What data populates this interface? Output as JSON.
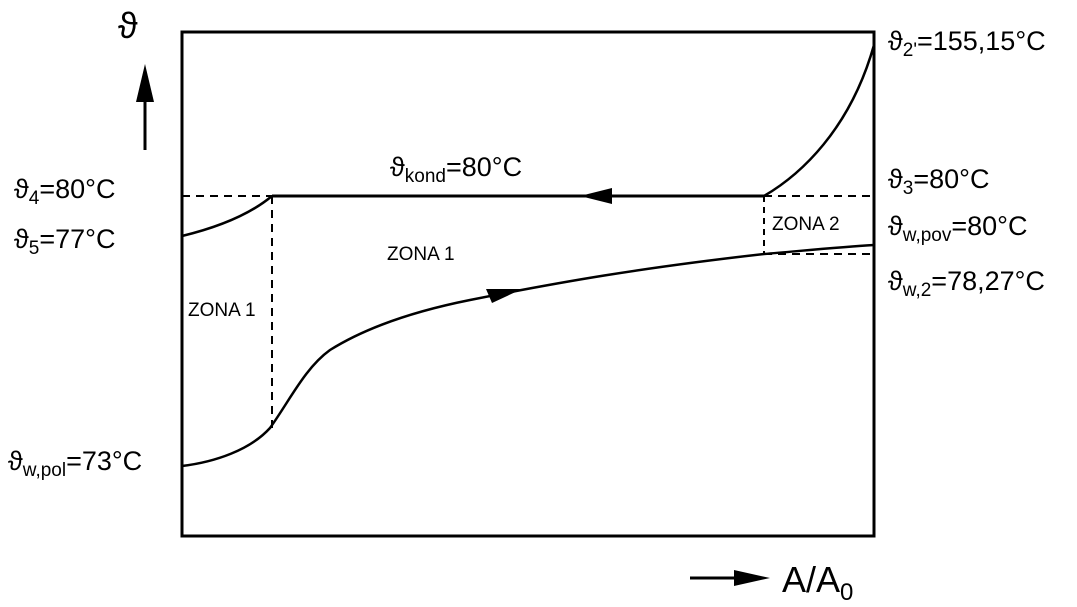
{
  "axes": {
    "y_symbol": "ϑ",
    "x_label": {
      "main": "A/A",
      "sub": "0"
    }
  },
  "labels": {
    "t2": {
      "sym": "ϑ",
      "sub": "2'",
      "val": "=155,15°C"
    },
    "t3": {
      "sym": "ϑ",
      "sub": "3",
      "val": "=80°C"
    },
    "t4": {
      "sym": "ϑ",
      "sub": "4",
      "val": "=80°C"
    },
    "t5": {
      "sym": "ϑ",
      "sub": "5",
      "val": "=77°C"
    },
    "tkond": {
      "sym": "ϑ",
      "sub": "kond",
      "val": "=80°C"
    },
    "twpov": {
      "sym": "ϑ",
      "sub": "w,pov",
      "val": "=80°C"
    },
    "tw2": {
      "sym": "ϑ",
      "sub": "w,2",
      "val": "=78,27°C"
    },
    "twpol": {
      "sym": "ϑ",
      "sub": "w,pol",
      "val": "=73°C"
    }
  },
  "zones": {
    "zone1_left": "ZONA 1",
    "zone1_mid": "ZONA 1",
    "zone2": "ZONA 2"
  }
}
